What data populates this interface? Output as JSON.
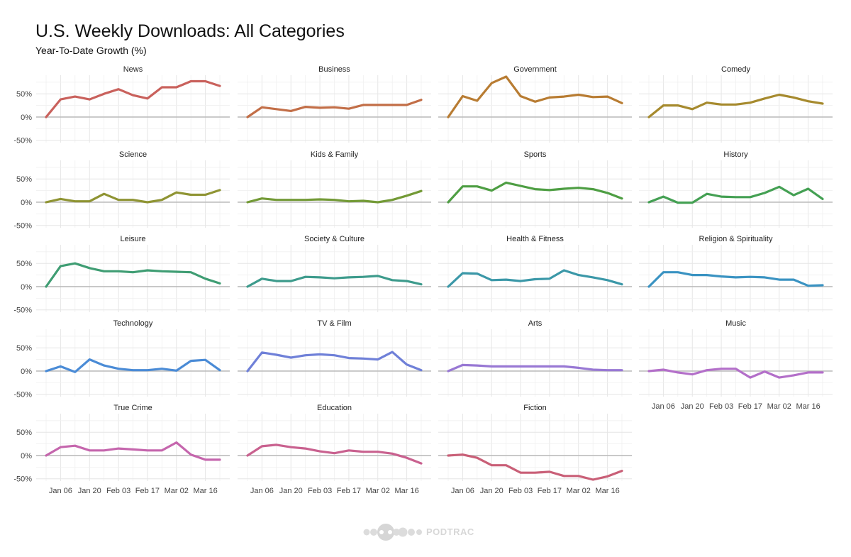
{
  "chart_data": {
    "type": "line",
    "title": "U.S. Weekly Downloads: All Categories",
    "subtitle": "Year-To-Date Growth (%)",
    "xlabel": "",
    "ylabel": "",
    "x": [
      "Dec 30",
      "Jan 06",
      "Jan 13",
      "Jan 20",
      "Jan 27",
      "Feb 03",
      "Feb 10",
      "Feb 17",
      "Feb 24",
      "Mar 02",
      "Mar 09",
      "Mar 16",
      "Mar 23"
    ],
    "x_tick_labels": [
      "Jan 06",
      "Jan 20",
      "Feb 03",
      "Feb 17",
      "Mar 02",
      "Mar 16"
    ],
    "y_tick_labels": [
      "50%",
      "0%",
      "-50%"
    ],
    "y_ticks": [
      50,
      0,
      -50
    ],
    "ylim": [
      -55,
      90
    ],
    "grid": true,
    "facet_layout": "4 columns, 5 rows",
    "series": [
      {
        "name": "News",
        "color": "#c9615c",
        "values": [
          0,
          38,
          44,
          38,
          50,
          60,
          47,
          40,
          64,
          64,
          77,
          77,
          67
        ]
      },
      {
        "name": "Business",
        "color": "#c26e47",
        "values": [
          0,
          21,
          17,
          13,
          22,
          20,
          21,
          18,
          26,
          26,
          26,
          26,
          37
        ]
      },
      {
        "name": "Government",
        "color": "#b87c32",
        "values": [
          0,
          45,
          35,
          73,
          87,
          45,
          33,
          42,
          44,
          48,
          43,
          44,
          30
        ]
      },
      {
        "name": "Comedy",
        "color": "#a68a2e",
        "values": [
          0,
          25,
          25,
          17,
          31,
          27,
          27,
          31,
          40,
          48,
          42,
          34,
          29
        ]
      },
      {
        "name": "Science",
        "color": "#8f9433",
        "values": [
          0,
          7,
          2,
          2,
          18,
          5,
          5,
          0,
          5,
          21,
          16,
          16,
          26
        ]
      },
      {
        "name": "Kids & Family",
        "color": "#739a36",
        "values": [
          0,
          8,
          5,
          5,
          5,
          6,
          5,
          2,
          3,
          0,
          5,
          14,
          24
        ]
      },
      {
        "name": "Sports",
        "color": "#4e9e43",
        "values": [
          0,
          34,
          34,
          25,
          42,
          35,
          28,
          26,
          29,
          31,
          28,
          20,
          8
        ]
      },
      {
        "name": "History",
        "color": "#44a053",
        "values": [
          0,
          12,
          -1,
          -1,
          18,
          12,
          11,
          11,
          20,
          33,
          15,
          29,
          7
        ]
      },
      {
        "name": "Leisure",
        "color": "#3f9d73",
        "values": [
          0,
          44,
          50,
          40,
          33,
          33,
          31,
          35,
          33,
          32,
          31,
          17,
          7
        ]
      },
      {
        "name": "Society & Culture",
        "color": "#3d9b8c",
        "values": [
          0,
          17,
          12,
          12,
          21,
          20,
          18,
          20,
          21,
          23,
          14,
          12,
          5
        ]
      },
      {
        "name": "Health & Fitness",
        "color": "#3b98a8",
        "values": [
          0,
          29,
          28,
          14,
          15,
          12,
          16,
          17,
          35,
          25,
          20,
          14,
          5
        ]
      },
      {
        "name": "Religion & Spirituality",
        "color": "#3a93c2",
        "values": [
          0,
          31,
          31,
          25,
          25,
          22,
          20,
          21,
          20,
          15,
          15,
          2,
          3
        ]
      },
      {
        "name": "Technology",
        "color": "#4a8bd6",
        "values": [
          0,
          10,
          -2,
          25,
          12,
          5,
          2,
          2,
          5,
          1,
          22,
          24,
          2
        ]
      },
      {
        "name": "TV & Film",
        "color": "#6f80d8",
        "values": [
          0,
          40,
          35,
          29,
          34,
          36,
          34,
          28,
          27,
          25,
          41,
          14,
          2
        ]
      },
      {
        "name": "Arts",
        "color": "#9878d4",
        "values": [
          0,
          13,
          12,
          10,
          10,
          10,
          10,
          10,
          10,
          7,
          3,
          2,
          2
        ]
      },
      {
        "name": "Music",
        "color": "#b36fc9",
        "values": [
          0,
          3,
          -3,
          -7,
          2,
          5,
          5,
          -14,
          -1,
          -14,
          -9,
          -3,
          -3
        ]
      },
      {
        "name": "True Crime",
        "color": "#c566ad",
        "values": [
          0,
          18,
          21,
          11,
          11,
          15,
          13,
          11,
          11,
          28,
          2,
          -9,
          -9
        ]
      },
      {
        "name": "Education",
        "color": "#c9618f",
        "values": [
          0,
          20,
          23,
          18,
          15,
          9,
          5,
          11,
          8,
          8,
          4,
          -5,
          -17
        ]
      },
      {
        "name": "Fiction",
        "color": "#c95f77",
        "values": [
          0,
          2,
          -5,
          -21,
          -21,
          -37,
          -37,
          -35,
          -44,
          -44,
          -52,
          -45,
          -33
        ]
      }
    ],
    "x_axis_panels": [
      "Music",
      "True Crime",
      "Education",
      "Fiction"
    ]
  },
  "logo": {
    "text": "PODTRAC"
  }
}
